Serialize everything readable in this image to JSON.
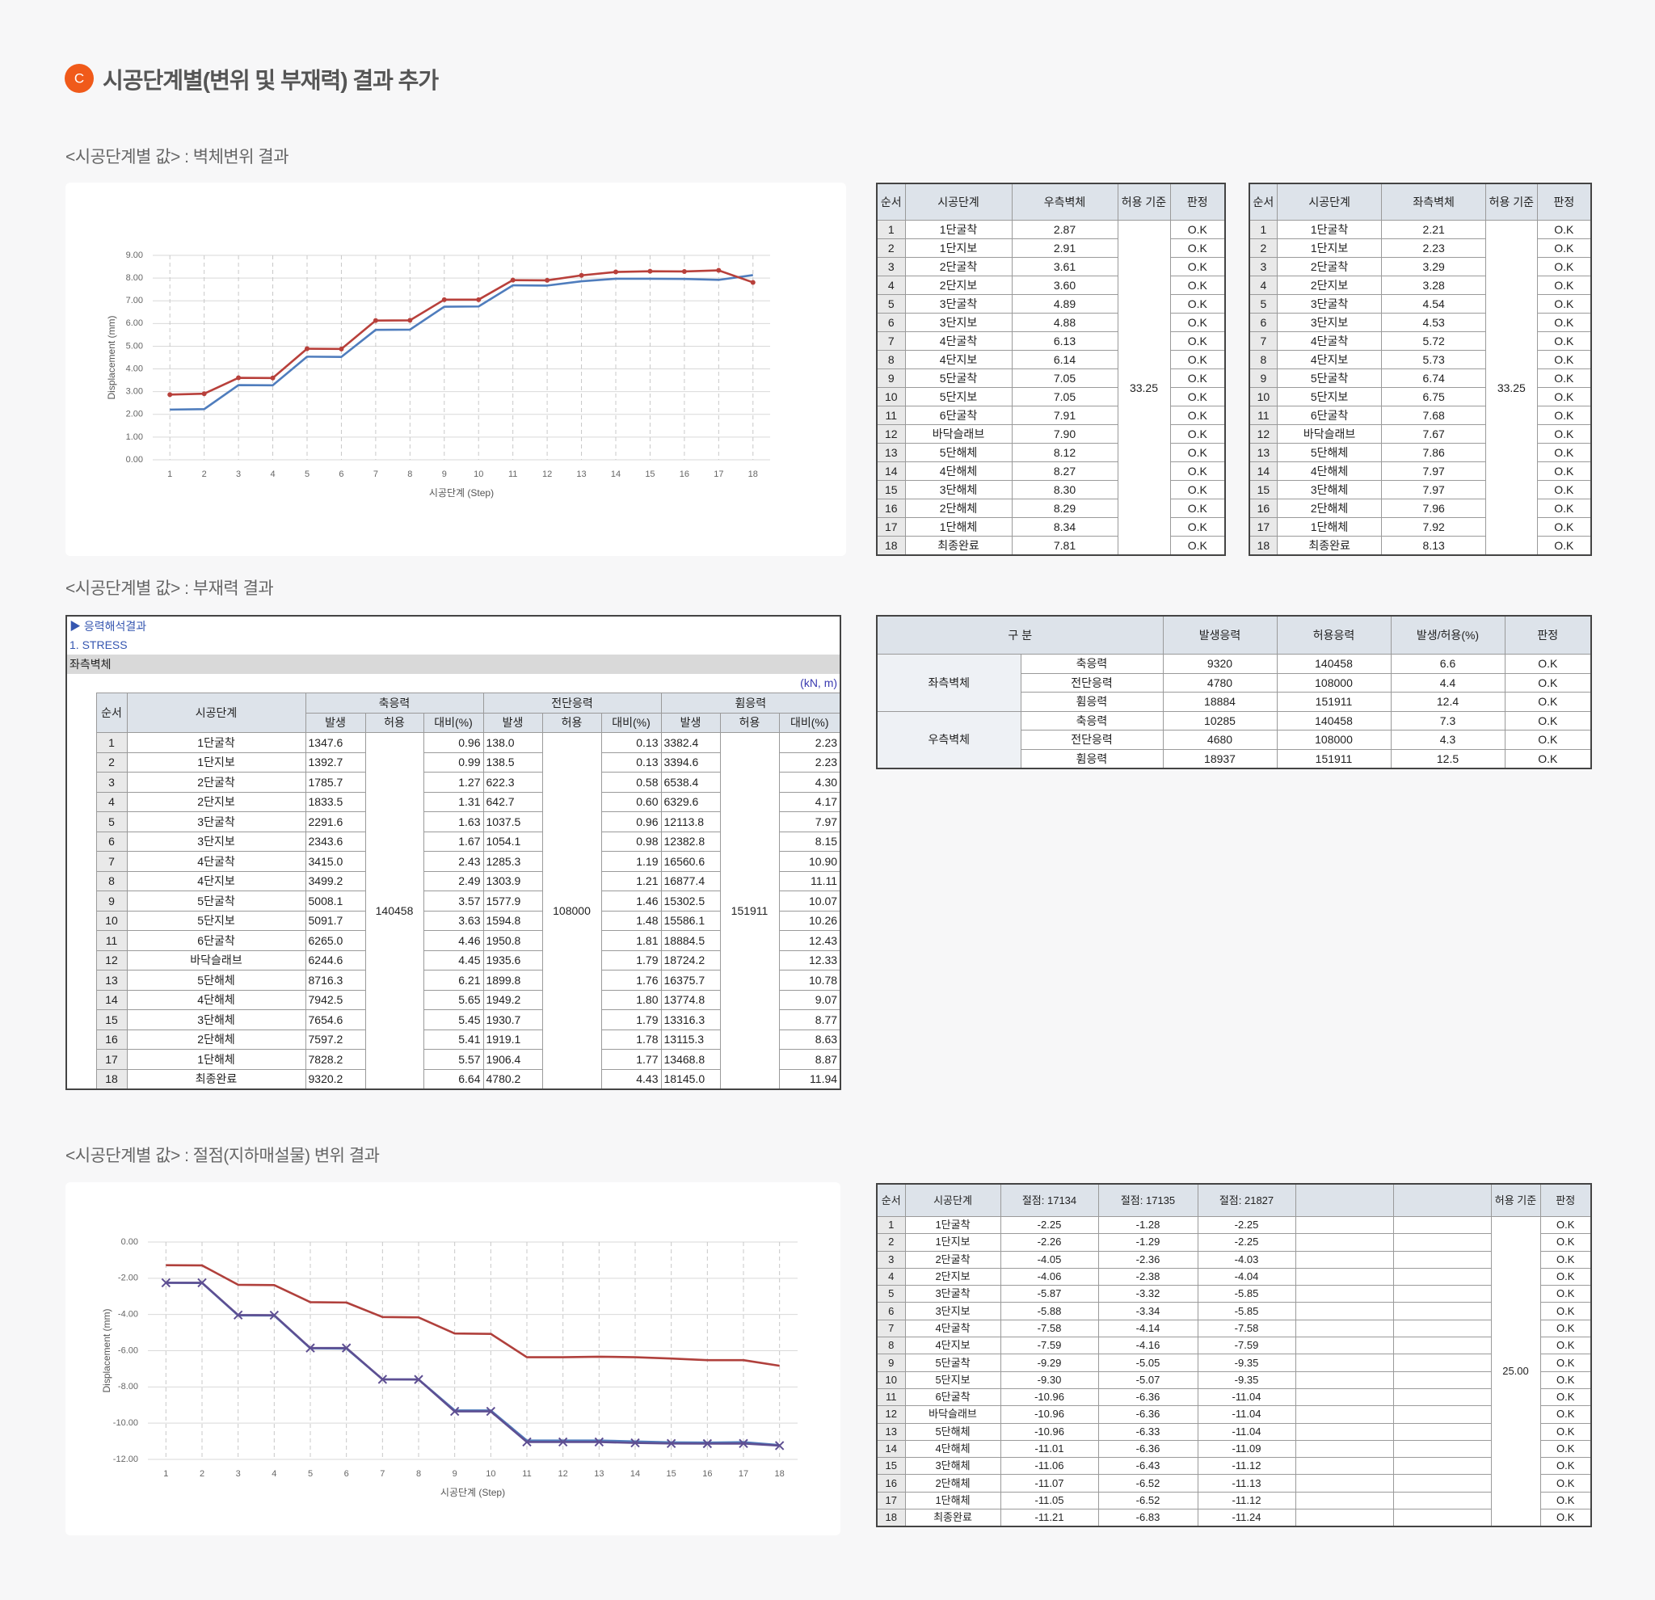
{
  "header": {
    "badge": "C",
    "title": "시공단계별(변위 및 부재력) 결과 추가"
  },
  "sections": [
    {
      "label": "<시공단계별 값> : 벽체변위 결과"
    },
    {
      "label": "<시공단계별 값> : 부재력 결과"
    },
    {
      "label": "<시공단계별 값> : 절점(지하매설물) 변위 결과"
    }
  ],
  "chart_data": [
    {
      "type": "line",
      "x_label": "시공단계 (Step)",
      "y_label": "Displacement (mm)",
      "grid": true,
      "categories": [
        "1",
        "2",
        "3",
        "4",
        "5",
        "6",
        "7",
        "8",
        "9",
        "10",
        "11",
        "12",
        "13",
        "14",
        "15",
        "16",
        "17",
        "18"
      ],
      "ylim": [
        0,
        9
      ],
      "yticks": [
        {
          "value": 0,
          "label": "0.00"
        },
        {
          "value": 1,
          "label": "1.00"
        },
        {
          "value": 2,
          "label": "2.00"
        },
        {
          "value": 3,
          "label": "3.00"
        },
        {
          "value": 4,
          "label": "4.00"
        },
        {
          "value": 5,
          "label": "5.00"
        },
        {
          "value": 6,
          "label": "6.00"
        },
        {
          "value": 7,
          "label": "7.00"
        },
        {
          "value": 8,
          "label": "8.00"
        },
        {
          "value": 9,
          "label": "9.00"
        }
      ],
      "series": [
        {
          "color": "#4f7dbd",
          "marker": "none",
          "values": [
            2.21,
            2.23,
            3.29,
            3.28,
            4.54,
            4.53,
            5.72,
            5.73,
            6.74,
            6.75,
            7.68,
            7.67,
            7.86,
            7.97,
            7.97,
            7.96,
            7.92,
            8.13
          ]
        },
        {
          "color": "#b8403b",
          "marker": "circle",
          "values": [
            2.87,
            2.91,
            3.61,
            3.6,
            4.89,
            4.88,
            6.13,
            6.14,
            7.05,
            7.05,
            7.91,
            7.9,
            8.12,
            8.27,
            8.3,
            8.29,
            8.34,
            7.81
          ]
        }
      ]
    },
    {
      "type": "line",
      "x_label": "시공단계 (Step)",
      "y_label": "Displacement (mm)",
      "grid": true,
      "categories": [
        "1",
        "2",
        "3",
        "4",
        "5",
        "6",
        "7",
        "8",
        "9",
        "10",
        "11",
        "12",
        "13",
        "14",
        "15",
        "16",
        "17",
        "18"
      ],
      "ylim": [
        -12,
        0
      ],
      "yticks": [
        {
          "value": 0,
          "label": "0.00"
        },
        {
          "value": -2,
          "label": "-2.00"
        },
        {
          "value": -4,
          "label": "-4.00"
        },
        {
          "value": -6,
          "label": "-6.00"
        },
        {
          "value": -8,
          "label": "-8.00"
        },
        {
          "value": -10,
          "label": "-10.00"
        },
        {
          "value": -12,
          "label": "-12.00"
        }
      ],
      "series": [
        {
          "color": "#4f7dbd",
          "marker": "none",
          "values": [
            -2.25,
            -2.26,
            -4.05,
            -4.06,
            -5.87,
            -5.88,
            -7.58,
            -7.59,
            -9.29,
            -9.3,
            -10.96,
            -10.96,
            -10.96,
            -11.01,
            -11.06,
            -11.07,
            -11.05,
            -11.21
          ]
        },
        {
          "color": "#b0403c",
          "marker": "none",
          "values": [
            -1.28,
            -1.29,
            -2.36,
            -2.38,
            -3.32,
            -3.34,
            -4.14,
            -4.16,
            -5.05,
            -5.07,
            -6.36,
            -6.36,
            -6.33,
            -6.36,
            -6.43,
            -6.52,
            -6.52,
            -6.83
          ]
        },
        {
          "color": "#5e4f92",
          "marker": "x",
          "values": [
            -2.25,
            -2.25,
            -4.03,
            -4.04,
            -5.85,
            -5.85,
            -7.58,
            -7.59,
            -9.35,
            -9.35,
            -11.04,
            -11.04,
            -11.04,
            -11.09,
            -11.12,
            -11.13,
            -11.12,
            -11.24
          ]
        }
      ]
    }
  ],
  "wall_tables": [
    {
      "columns": [
        "순서",
        "시공단계",
        "우측벽체",
        "허용 기준",
        "판정"
      ],
      "allowable": "33.25",
      "rows": [
        [
          "1",
          "1단굴착",
          "2.87",
          "O.K"
        ],
        [
          "2",
          "1단지보",
          "2.91",
          "O.K"
        ],
        [
          "3",
          "2단굴착",
          "3.61",
          "O.K"
        ],
        [
          "4",
          "2단지보",
          "3.60",
          "O.K"
        ],
        [
          "5",
          "3단굴착",
          "4.89",
          "O.K"
        ],
        [
          "6",
          "3단지보",
          "4.88",
          "O.K"
        ],
        [
          "7",
          "4단굴착",
          "6.13",
          "O.K"
        ],
        [
          "8",
          "4단지보",
          "6.14",
          "O.K"
        ],
        [
          "9",
          "5단굴착",
          "7.05",
          "O.K"
        ],
        [
          "10",
          "5단지보",
          "7.05",
          "O.K"
        ],
        [
          "11",
          "6단굴착",
          "7.91",
          "O.K"
        ],
        [
          "12",
          "바닥슬래브",
          "7.90",
          "O.K"
        ],
        [
          "13",
          "5단해체",
          "8.12",
          "O.K"
        ],
        [
          "14",
          "4단해체",
          "8.27",
          "O.K"
        ],
        [
          "15",
          "3단해체",
          "8.30",
          "O.K"
        ],
        [
          "16",
          "2단해체",
          "8.29",
          "O.K"
        ],
        [
          "17",
          "1단해체",
          "8.34",
          "O.K"
        ],
        [
          "18",
          "최종완료",
          "7.81",
          "O.K"
        ]
      ]
    },
    {
      "columns": [
        "순서",
        "시공단계",
        "좌측벽체",
        "허용 기준",
        "판정"
      ],
      "allowable": "33.25",
      "rows": [
        [
          "1",
          "1단굴착",
          "2.21",
          "O.K"
        ],
        [
          "2",
          "1단지보",
          "2.23",
          "O.K"
        ],
        [
          "3",
          "2단굴착",
          "3.29",
          "O.K"
        ],
        [
          "4",
          "2단지보",
          "3.28",
          "O.K"
        ],
        [
          "5",
          "3단굴착",
          "4.54",
          "O.K"
        ],
        [
          "6",
          "3단지보",
          "4.53",
          "O.K"
        ],
        [
          "7",
          "4단굴착",
          "5.72",
          "O.K"
        ],
        [
          "8",
          "4단지보",
          "5.73",
          "O.K"
        ],
        [
          "9",
          "5단굴착",
          "6.74",
          "O.K"
        ],
        [
          "10",
          "5단지보",
          "6.75",
          "O.K"
        ],
        [
          "11",
          "6단굴착",
          "7.68",
          "O.K"
        ],
        [
          "12",
          "바닥슬래브",
          "7.67",
          "O.K"
        ],
        [
          "13",
          "5단해체",
          "7.86",
          "O.K"
        ],
        [
          "14",
          "4단해체",
          "7.97",
          "O.K"
        ],
        [
          "15",
          "3단해체",
          "7.97",
          "O.K"
        ],
        [
          "16",
          "2단해체",
          "7.96",
          "O.K"
        ],
        [
          "17",
          "1단해체",
          "7.92",
          "O.K"
        ],
        [
          "18",
          "최종완료",
          "8.13",
          "O.K"
        ]
      ]
    }
  ],
  "stress_table": {
    "title": "▶ 응력해석결과",
    "subtitle": "1. STRESS",
    "member": "좌측벽체",
    "unit": "(kN, m)",
    "header_top": [
      "순서",
      "시공단계",
      "축응력",
      "전단응력",
      "휨응력"
    ],
    "header_sub": [
      "발생",
      "허용",
      "대비(%)",
      "발생",
      "허용",
      "대비(%)",
      "발생",
      "허용",
      "대비(%)"
    ],
    "allowables": [
      "140458",
      "108000",
      "151911"
    ],
    "rows": [
      [
        "1",
        "1단굴착",
        "1347.6",
        "0.96",
        "138.0",
        "0.13",
        "3382.4",
        "2.23"
      ],
      [
        "2",
        "1단지보",
        "1392.7",
        "0.99",
        "138.5",
        "0.13",
        "3394.6",
        "2.23"
      ],
      [
        "3",
        "2단굴착",
        "1785.7",
        "1.27",
        "622.3",
        "0.58",
        "6538.4",
        "4.30"
      ],
      [
        "4",
        "2단지보",
        "1833.5",
        "1.31",
        "642.7",
        "0.60",
        "6329.6",
        "4.17"
      ],
      [
        "5",
        "3단굴착",
        "2291.6",
        "1.63",
        "1037.5",
        "0.96",
        "12113.8",
        "7.97"
      ],
      [
        "6",
        "3단지보",
        "2343.6",
        "1.67",
        "1054.1",
        "0.98",
        "12382.8",
        "8.15"
      ],
      [
        "7",
        "4단굴착",
        "3415.0",
        "2.43",
        "1285.3",
        "1.19",
        "16560.6",
        "10.90"
      ],
      [
        "8",
        "4단지보",
        "3499.2",
        "2.49",
        "1303.9",
        "1.21",
        "16877.4",
        "11.11"
      ],
      [
        "9",
        "5단굴착",
        "5008.1",
        "3.57",
        "1577.9",
        "1.46",
        "15302.5",
        "10.07"
      ],
      [
        "10",
        "5단지보",
        "5091.7",
        "3.63",
        "1594.8",
        "1.48",
        "15586.1",
        "10.26"
      ],
      [
        "11",
        "6단굴착",
        "6265.0",
        "4.46",
        "1950.8",
        "1.81",
        "18884.5",
        "12.43"
      ],
      [
        "12",
        "바닥슬래브",
        "6244.6",
        "4.45",
        "1935.6",
        "1.79",
        "18724.2",
        "12.33"
      ],
      [
        "13",
        "5단해체",
        "8716.3",
        "6.21",
        "1899.8",
        "1.76",
        "16375.7",
        "10.78"
      ],
      [
        "14",
        "4단해체",
        "7942.5",
        "5.65",
        "1949.2",
        "1.80",
        "13774.8",
        "9.07"
      ],
      [
        "15",
        "3단해체",
        "7654.6",
        "5.45",
        "1930.7",
        "1.79",
        "13316.3",
        "8.77"
      ],
      [
        "16",
        "2단해체",
        "7597.2",
        "5.41",
        "1919.1",
        "1.78",
        "13115.3",
        "8.63"
      ],
      [
        "17",
        "1단해체",
        "7828.2",
        "5.57",
        "1906.4",
        "1.77",
        "13468.8",
        "8.87"
      ],
      [
        "18",
        "최종완료",
        "9320.2",
        "6.64",
        "4780.2",
        "4.43",
        "18145.0",
        "11.94"
      ]
    ]
  },
  "summary_table": {
    "columns": [
      "구 분",
      "발생응력",
      "허용응력",
      "발생/허용(%)",
      "판정"
    ],
    "groups": [
      {
        "name": "좌측벽체",
        "rows": [
          [
            "축응력",
            "9320",
            "140458",
            "6.6",
            "O.K"
          ],
          [
            "전단응력",
            "4780",
            "108000",
            "4.4",
            "O.K"
          ],
          [
            "휨응력",
            "18884",
            "151911",
            "12.4",
            "O.K"
          ]
        ]
      },
      {
        "name": "우측벽체",
        "rows": [
          [
            "축응력",
            "10285",
            "140458",
            "7.3",
            "O.K"
          ],
          [
            "전단응력",
            "4680",
            "108000",
            "4.3",
            "O.K"
          ],
          [
            "휨응력",
            "18937",
            "151911",
            "12.5",
            "O.K"
          ]
        ]
      }
    ]
  },
  "node_table": {
    "columns": [
      "순서",
      "시공단계",
      "절점: 17134",
      "절점: 17135",
      "절점: 21827",
      "허용 기준",
      "판정"
    ],
    "allowable": "25.00",
    "rows": [
      [
        "1",
        "1단굴착",
        "-2.25",
        "-1.28",
        "-2.25",
        "O.K"
      ],
      [
        "2",
        "1단지보",
        "-2.26",
        "-1.29",
        "-2.25",
        "O.K"
      ],
      [
        "3",
        "2단굴착",
        "-4.05",
        "-2.36",
        "-4.03",
        "O.K"
      ],
      [
        "4",
        "2단지보",
        "-4.06",
        "-2.38",
        "-4.04",
        "O.K"
      ],
      [
        "5",
        "3단굴착",
        "-5.87",
        "-3.32",
        "-5.85",
        "O.K"
      ],
      [
        "6",
        "3단지보",
        "-5.88",
        "-3.34",
        "-5.85",
        "O.K"
      ],
      [
        "7",
        "4단굴착",
        "-7.58",
        "-4.14",
        "-7.58",
        "O.K"
      ],
      [
        "8",
        "4단지보",
        "-7.59",
        "-4.16",
        "-7.59",
        "O.K"
      ],
      [
        "9",
        "5단굴착",
        "-9.29",
        "-5.05",
        "-9.35",
        "O.K"
      ],
      [
        "10",
        "5단지보",
        "-9.30",
        "-5.07",
        "-9.35",
        "O.K"
      ],
      [
        "11",
        "6단굴착",
        "-10.96",
        "-6.36",
        "-11.04",
        "O.K"
      ],
      [
        "12",
        "바닥슬래브",
        "-10.96",
        "-6.36",
        "-11.04",
        "O.K"
      ],
      [
        "13",
        "5단해체",
        "-10.96",
        "-6.33",
        "-11.04",
        "O.K"
      ],
      [
        "14",
        "4단해체",
        "-11.01",
        "-6.36",
        "-11.09",
        "O.K"
      ],
      [
        "15",
        "3단해체",
        "-11.06",
        "-6.43",
        "-11.12",
        "O.K"
      ],
      [
        "16",
        "2단해체",
        "-11.07",
        "-6.52",
        "-11.13",
        "O.K"
      ],
      [
        "17",
        "1단해체",
        "-11.05",
        "-6.52",
        "-11.12",
        "O.K"
      ],
      [
        "18",
        "최종완료",
        "-11.21",
        "-6.83",
        "-11.24",
        "O.K"
      ]
    ]
  }
}
